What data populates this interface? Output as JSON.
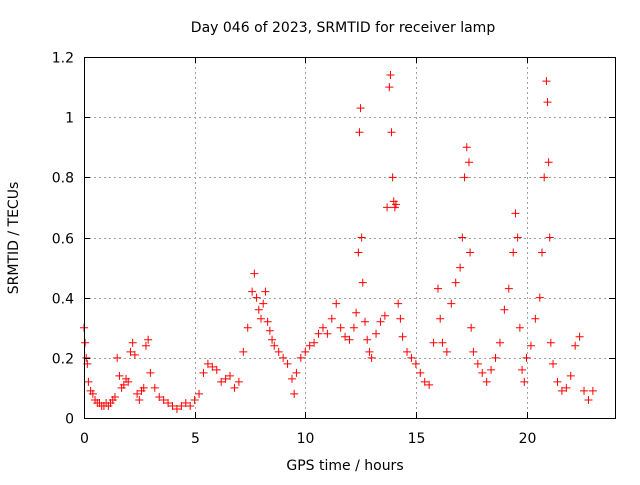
{
  "chart_data": {
    "type": "scatter",
    "title": "Day 046 of 2023, SRMTID for receiver lamp",
    "xlabel": "GPS time / hours",
    "ylabel": "SRMTID / TECUs",
    "xlim": [
      0,
      24
    ],
    "ylim": [
      0,
      1.2
    ],
    "grid": true,
    "marker": "plus",
    "color": "#ff0000",
    "xticks": [
      0,
      5,
      10,
      15,
      20
    ],
    "xtick_labels": [
      "0",
      "5",
      "10",
      "15",
      "20"
    ],
    "yticks": [
      0,
      0.2,
      0.4,
      0.6,
      0.8,
      1.0,
      1.2
    ],
    "ytick_labels": [
      "0",
      "0.2",
      "0.4",
      "0.6",
      "0.8",
      "1",
      "1.2"
    ],
    "series": [
      {
        "name": "SRMTID",
        "x": [
          0.0,
          0.05,
          0.1,
          0.15,
          0.2,
          0.3,
          0.4,
          0.5,
          0.6,
          0.7,
          0.8,
          0.9,
          1.0,
          1.1,
          1.2,
          1.3,
          1.4,
          1.5,
          1.6,
          1.7,
          1.8,
          1.9,
          2.0,
          2.1,
          2.2,
          2.3,
          2.4,
          2.5,
          2.6,
          2.7,
          2.8,
          2.9,
          3.0,
          3.2,
          3.4,
          3.6,
          3.8,
          4.0,
          4.2,
          4.4,
          4.6,
          4.8,
          5.0,
          5.2,
          5.4,
          5.6,
          5.8,
          6.0,
          6.2,
          6.4,
          6.6,
          6.8,
          7.0,
          7.2,
          7.4,
          7.6,
          7.7,
          7.8,
          7.9,
          8.0,
          8.1,
          8.2,
          8.3,
          8.4,
          8.5,
          8.6,
          8.8,
          9.0,
          9.2,
          9.4,
          9.5,
          9.6,
          9.8,
          10.0,
          10.2,
          10.4,
          10.6,
          10.8,
          11.0,
          11.2,
          11.4,
          11.6,
          11.8,
          12.0,
          12.2,
          12.3,
          12.4,
          12.45,
          12.5,
          12.55,
          12.6,
          12.7,
          12.8,
          12.9,
          13.0,
          13.2,
          13.4,
          13.6,
          13.7,
          13.8,
          13.85,
          13.9,
          13.95,
          14.0,
          14.05,
          14.1,
          14.2,
          14.3,
          14.4,
          14.6,
          14.8,
          15.0,
          15.2,
          15.4,
          15.6,
          15.8,
          16.0,
          16.1,
          16.2,
          16.4,
          16.6,
          16.8,
          17.0,
          17.1,
          17.2,
          17.3,
          17.4,
          17.45,
          17.5,
          17.6,
          17.8,
          18.0,
          18.2,
          18.4,
          18.6,
          18.8,
          19.0,
          19.2,
          19.4,
          19.5,
          19.6,
          19.7,
          19.8,
          19.9,
          20.0,
          20.2,
          20.4,
          20.6,
          20.7,
          20.8,
          20.9,
          20.95,
          21.0,
          21.05,
          21.1,
          21.2,
          21.4,
          21.6,
          21.8,
          22.0,
          22.2,
          22.4,
          22.6,
          22.8,
          23.0
        ],
        "y": [
          0.3,
          0.25,
          0.2,
          0.18,
          0.12,
          0.09,
          0.08,
          0.06,
          0.05,
          0.05,
          0.04,
          0.04,
          0.05,
          0.04,
          0.05,
          0.06,
          0.07,
          0.2,
          0.14,
          0.1,
          0.11,
          0.13,
          0.12,
          0.22,
          0.25,
          0.21,
          0.08,
          0.06,
          0.09,
          0.1,
          0.24,
          0.26,
          0.15,
          0.1,
          0.07,
          0.06,
          0.05,
          0.04,
          0.03,
          0.04,
          0.05,
          0.04,
          0.06,
          0.08,
          0.15,
          0.18,
          0.17,
          0.16,
          0.12,
          0.13,
          0.14,
          0.1,
          0.12,
          0.22,
          0.3,
          0.42,
          0.48,
          0.4,
          0.36,
          0.33,
          0.38,
          0.42,
          0.32,
          0.29,
          0.26,
          0.24,
          0.22,
          0.2,
          0.18,
          0.13,
          0.08,
          0.15,
          0.2,
          0.22,
          0.24,
          0.25,
          0.28,
          0.3,
          0.28,
          0.33,
          0.38,
          0.3,
          0.27,
          0.26,
          0.3,
          0.35,
          0.55,
          0.95,
          1.03,
          0.6,
          0.45,
          0.32,
          0.26,
          0.22,
          0.2,
          0.28,
          0.32,
          0.34,
          0.7,
          1.1,
          1.14,
          0.95,
          0.8,
          0.72,
          0.7,
          0.71,
          0.38,
          0.33,
          0.27,
          0.22,
          0.2,
          0.18,
          0.15,
          0.12,
          0.11,
          0.25,
          0.43,
          0.33,
          0.25,
          0.22,
          0.38,
          0.45,
          0.5,
          0.6,
          0.8,
          0.9,
          0.85,
          0.55,
          0.3,
          0.22,
          0.18,
          0.15,
          0.12,
          0.16,
          0.2,
          0.25,
          0.36,
          0.43,
          0.55,
          0.68,
          0.6,
          0.3,
          0.16,
          0.12,
          0.2,
          0.24,
          0.33,
          0.4,
          0.55,
          0.8,
          1.12,
          1.05,
          0.85,
          0.6,
          0.25,
          0.18,
          0.12,
          0.09,
          0.1,
          0.14,
          0.24,
          0.27,
          0.09,
          0.06,
          0.09
        ]
      }
    ]
  }
}
